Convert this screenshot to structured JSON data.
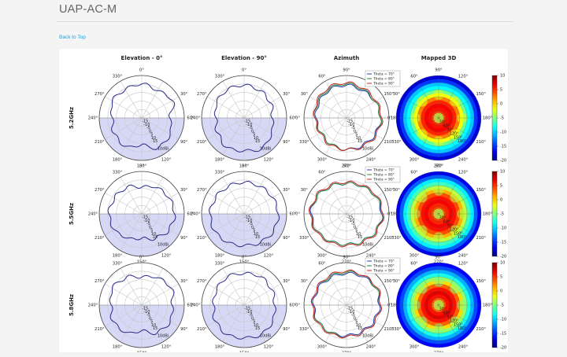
{
  "page": {
    "title": "UAP-AC-M",
    "back_link": "Back to Top"
  },
  "columns": [
    "Elevation - 0°",
    "Elevation - 90°",
    "Azimuth",
    "Mapped 3D"
  ],
  "rows": [
    "5.2GHz",
    "5.5GHz",
    "5.8GHz"
  ],
  "polar": {
    "angle_labels_elevation": [
      "0°",
      "330°",
      "270°",
      "240°",
      "210°",
      "180°",
      "150°",
      "120°",
      "90°",
      "60°",
      "30°"
    ],
    "angle_labels_azimuth": [
      "90°",
      "60°",
      "30°",
      "0°",
      "330°",
      "300°",
      "270°",
      "240°",
      "210°",
      "180°",
      "150°",
      "120°"
    ],
    "radial_labels": [
      "15",
      "10",
      "5",
      "0",
      "-5",
      "-10",
      "-15"
    ],
    "unit": "10dBi",
    "colors": {
      "pattern": "#2a2a8a",
      "lower_half_fill": "#d6d8f6",
      "theta70": "#1f3fb0",
      "theta80": "#2a8a3a",
      "theta90": "#cc2222"
    }
  },
  "legend": [
    "Theta = 70°",
    "Theta = 80°",
    "Theta = 90°"
  ],
  "mapped3d": {
    "angle_labels": [
      "90°",
      "60°",
      "30°",
      "0°",
      "330°",
      "300°",
      "270°",
      "240°",
      "210°",
      "180°",
      "150°",
      "120°"
    ],
    "radial_labels": [
      "30°",
      "60°",
      "90°",
      "120°",
      "150°",
      "180°"
    ],
    "colorbar_ticks": [
      "10",
      "5",
      "0",
      "-5",
      "-10",
      "-15",
      "-20"
    ],
    "colorbar_range": [
      -20,
      10
    ]
  },
  "chart_data": [
    {
      "type": "line",
      "panel": "Elevation - 0°",
      "row": "5.2GHz",
      "polar": true,
      "unit": "dBi",
      "rlim": [
        -20,
        15
      ],
      "x": [
        0,
        30,
        60,
        90,
        120,
        150,
        180,
        210,
        240,
        270,
        300,
        330
      ],
      "series": [
        {
          "values": [
            8,
            6,
            9,
            3,
            7,
            8,
            2,
            7,
            6,
            4,
            8,
            7
          ]
        }
      ]
    },
    {
      "type": "line",
      "panel": "Elevation - 90°",
      "row": "5.2GHz",
      "polar": true,
      "unit": "dBi",
      "rlim": [
        -20,
        15
      ],
      "x": [
        0,
        30,
        60,
        90,
        120,
        150,
        180,
        210,
        240,
        270,
        300,
        330
      ],
      "series": [
        {
          "values": [
            7,
            6,
            5,
            3,
            6,
            9,
            7,
            8,
            5,
            3,
            6,
            7
          ]
        }
      ]
    },
    {
      "type": "line",
      "panel": "Azimuth",
      "row": "5.2GHz",
      "polar": true,
      "unit": "dBi",
      "rlim": [
        -20,
        15
      ],
      "x": [
        0,
        30,
        60,
        90,
        120,
        150,
        180,
        210,
        240,
        270,
        300,
        330
      ],
      "series": [
        {
          "name": "Theta = 70°",
          "values": [
            7,
            6,
            7,
            8,
            7,
            6,
            6,
            5,
            4,
            5,
            6,
            7
          ]
        },
        {
          "name": "Theta = 80°",
          "values": [
            8,
            7,
            7,
            8,
            8,
            7,
            6,
            5,
            4,
            6,
            7,
            8
          ]
        },
        {
          "name": "Theta = 90°",
          "values": [
            9,
            8,
            8,
            9,
            8,
            7,
            6,
            6,
            5,
            6,
            8,
            9
          ]
        }
      ]
    },
    {
      "type": "line",
      "panel": "Elevation - 0°",
      "row": "5.5GHz",
      "polar": true,
      "unit": "dBi",
      "rlim": [
        -20,
        15
      ],
      "x": [
        0,
        30,
        60,
        90,
        120,
        150,
        180,
        210,
        240,
        270,
        300,
        330
      ],
      "series": [
        {
          "values": [
            2,
            5,
            6,
            7,
            6,
            3,
            0,
            3,
            6,
            7,
            6,
            5
          ]
        }
      ]
    },
    {
      "type": "line",
      "panel": "Elevation - 90°",
      "row": "5.5GHz",
      "polar": true,
      "unit": "dBi",
      "rlim": [
        -20,
        15
      ],
      "x": [
        0,
        30,
        60,
        90,
        120,
        150,
        180,
        210,
        240,
        270,
        300,
        330
      ],
      "series": [
        {
          "values": [
            6,
            6,
            7,
            8,
            8,
            7,
            6,
            7,
            8,
            8,
            7,
            6
          ]
        }
      ]
    },
    {
      "type": "line",
      "panel": "Azimuth",
      "row": "5.5GHz",
      "polar": true,
      "unit": "dBi",
      "rlim": [
        -20,
        15
      ],
      "x": [
        0,
        30,
        60,
        90,
        120,
        150,
        180,
        210,
        240,
        270,
        300,
        330
      ],
      "series": [
        {
          "name": "Theta = 70°",
          "values": [
            5,
            6,
            8,
            9,
            8,
            6,
            5,
            6,
            8,
            9,
            8,
            6
          ]
        },
        {
          "name": "Theta = 80°",
          "values": [
            5,
            6,
            8,
            10,
            8,
            6,
            5,
            6,
            8,
            10,
            8,
            6
          ]
        },
        {
          "name": "Theta = 90°",
          "values": [
            6,
            7,
            9,
            10,
            9,
            7,
            6,
            7,
            9,
            10,
            9,
            7
          ]
        }
      ]
    },
    {
      "type": "line",
      "panel": "Elevation - 0°",
      "row": "5.8GHz",
      "polar": true,
      "unit": "dBi",
      "rlim": [
        -20,
        15
      ],
      "x": [
        0,
        30,
        60,
        90,
        120,
        150,
        180,
        210,
        240,
        270,
        300,
        330
      ],
      "series": [
        {
          "values": [
            3,
            6,
            8,
            5,
            7,
            6,
            1,
            6,
            7,
            5,
            8,
            6
          ]
        }
      ]
    },
    {
      "type": "line",
      "panel": "Elevation - 90°",
      "row": "5.8GHz",
      "polar": true,
      "unit": "dBi",
      "rlim": [
        -20,
        15
      ],
      "x": [
        0,
        30,
        60,
        90,
        120,
        150,
        180,
        210,
        240,
        270,
        300,
        330
      ],
      "series": [
        {
          "values": [
            6,
            7,
            6,
            5,
            7,
            8,
            7,
            8,
            7,
            5,
            6,
            7
          ]
        }
      ]
    },
    {
      "type": "line",
      "panel": "Azimuth",
      "row": "5.8GHz",
      "polar": true,
      "unit": "dBi",
      "rlim": [
        -20,
        15
      ],
      "x": [
        0,
        30,
        60,
        90,
        120,
        150,
        180,
        210,
        240,
        270,
        300,
        330
      ],
      "series": [
        {
          "name": "Theta = 70°",
          "values": [
            6,
            7,
            8,
            7,
            6,
            5,
            5,
            6,
            7,
            7,
            7,
            6
          ]
        },
        {
          "name": "Theta = 80°",
          "values": [
            7,
            8,
            8,
            8,
            7,
            6,
            6,
            6,
            7,
            8,
            8,
            7
          ]
        },
        {
          "name": "Theta = 90°",
          "values": [
            8,
            8,
            9,
            8,
            7,
            6,
            6,
            7,
            8,
            8,
            8,
            8
          ]
        }
      ]
    },
    {
      "type": "heatmap",
      "panel": "Mapped 3D",
      "row": "5.2GHz",
      "polar": true,
      "unit": "dBi",
      "colorbar_range": [
        -20,
        10
      ]
    },
    {
      "type": "heatmap",
      "panel": "Mapped 3D",
      "row": "5.5GHz",
      "polar": true,
      "unit": "dBi",
      "colorbar_range": [
        -20,
        10
      ]
    },
    {
      "type": "heatmap",
      "panel": "Mapped 3D",
      "row": "5.8GHz",
      "polar": true,
      "unit": "dBi",
      "colorbar_range": [
        -20,
        10
      ]
    }
  ]
}
